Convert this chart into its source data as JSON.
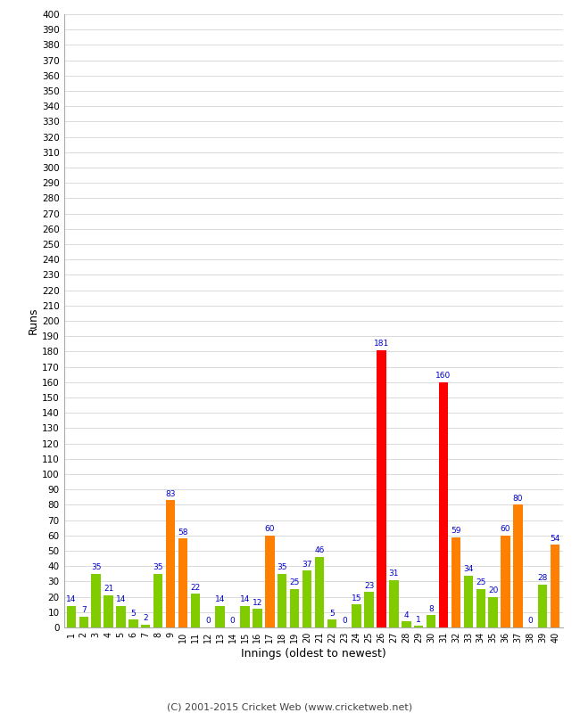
{
  "xlabel": "Innings (oldest to newest)",
  "ylabel": "Runs",
  "copyright": "(C) 2001-2015 Cricket Web (www.cricketweb.net)",
  "ylim": [
    0,
    400
  ],
  "innings": [
    1,
    2,
    3,
    4,
    5,
    6,
    7,
    8,
    9,
    10,
    11,
    12,
    13,
    14,
    15,
    16,
    17,
    18,
    19,
    20,
    21,
    22,
    23,
    24,
    25,
    26,
    27,
    28,
    29,
    30,
    31,
    32,
    33,
    34,
    35,
    36,
    37,
    38,
    39,
    40
  ],
  "values": [
    14,
    7,
    35,
    21,
    14,
    5,
    2,
    35,
    83,
    58,
    22,
    0,
    14,
    0,
    14,
    12,
    60,
    35,
    25,
    37,
    46,
    5,
    0,
    15,
    23,
    181,
    31,
    4,
    1,
    8,
    160,
    59,
    34,
    25,
    20,
    60,
    80,
    0,
    28,
    54
  ],
  "colors": [
    "#80cc00",
    "#80cc00",
    "#80cc00",
    "#80cc00",
    "#80cc00",
    "#80cc00",
    "#80cc00",
    "#80cc00",
    "#ff8000",
    "#ff8000",
    "#80cc00",
    "#80cc00",
    "#80cc00",
    "#80cc00",
    "#80cc00",
    "#80cc00",
    "#ff8000",
    "#80cc00",
    "#80cc00",
    "#80cc00",
    "#80cc00",
    "#80cc00",
    "#80cc00",
    "#80cc00",
    "#80cc00",
    "#ff0000",
    "#80cc00",
    "#80cc00",
    "#80cc00",
    "#80cc00",
    "#ff0000",
    "#ff8000",
    "#80cc00",
    "#80cc00",
    "#80cc00",
    "#ff8000",
    "#ff8000",
    "#80cc00",
    "#80cc00",
    "#ff8000"
  ],
  "label_color": "#0000cc",
  "bg_color": "#ffffff",
  "grid_color": "#cccccc",
  "bar_width": 0.75
}
